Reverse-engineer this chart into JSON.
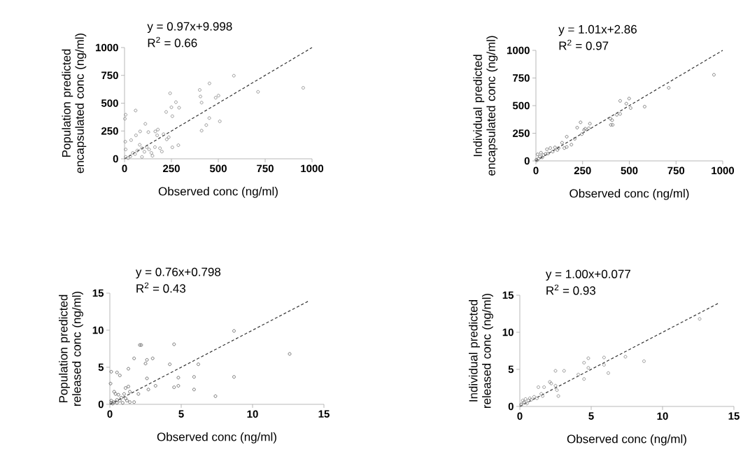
{
  "chart_data": [
    {
      "type": "scatter",
      "xlabel": "Observed conc (ng/ml)",
      "ylabel": "Population predicted encapsulated conc (ng/ml)",
      "annotations": [
        "y = 0.97x+9.998",
        "R$^{2}$ = 0.66"
      ],
      "xlim": [
        0,
        1000
      ],
      "ylim": [
        0,
        1000
      ],
      "xticks": [
        0,
        250,
        500,
        750,
        1000
      ],
      "yticks": [
        0,
        250,
        500,
        750,
        1000
      ],
      "series": [
        {
          "marker": "circle",
          "color": "#808080",
          "x": [
            583,
            953,
            712,
            453,
            401,
            405,
            411,
            486,
            501,
            508,
            452,
            436,
            411,
            243,
            274,
            250,
            291,
            255,
            222,
            59,
            6,
            2,
            111,
            83,
            127,
            164,
            178,
            61,
            208,
            236,
            225,
            255,
            287,
            199,
            189,
            149,
            143,
            35,
            4,
            6,
            81,
            93,
            56,
            31,
            19,
            118,
            131,
            106,
            68,
            44,
            93,
            6,
            162,
            174
          ],
          "values": [
            747,
            638,
            602,
            678,
            619,
            560,
            505,
            549,
            568,
            337,
            366,
            303,
            253,
            589,
            509,
            463,
            459,
            383,
            421,
            434,
            396,
            360,
            314,
            246,
            240,
            246,
            263,
            211,
            221,
            194,
            175,
            103,
            122,
            65,
            95,
            27,
            53,
            168,
            154,
            84,
            126,
            95,
            42,
            21,
            6,
            105,
            84,
            63,
            74,
            53,
            17,
            17,
            105,
            211
          ]
        },
        {
          "type": "line",
          "line_style": "dashed",
          "color": "#333333",
          "x": [
            0,
            1000
          ],
          "values": [
            0,
            1000
          ]
        }
      ]
    },
    {
      "type": "scatter",
      "xlabel": "Observed conc (ng/ml)",
      "ylabel": "Individual predicted encapsulated conc (ng/ml)",
      "annotations": [
        "y = 1.01x+2.86",
        "R$^{2}$ = 0.97"
      ],
      "xlim": [
        0,
        1000
      ],
      "ylim": [
        0,
        1000
      ],
      "xticks": [
        0,
        250,
        500,
        750,
        1000
      ],
      "yticks": [
        0,
        250,
        500,
        750,
        1000
      ],
      "series": [
        {
          "marker": "circle",
          "color": "#666666",
          "x": [
            953,
            711,
            582,
            451,
            499,
            484,
            507,
            451,
            433,
            398,
            408,
            401,
            411,
            239,
            221,
            289,
            283,
            258,
            246,
            208,
            165,
            190,
            165,
            140,
            121,
            102,
            59,
            77,
            27,
            9,
            21,
            40,
            52,
            90,
            115,
            2,
            15,
            34,
            65,
            5,
            152,
            264
          ],
          "values": [
            779,
            661,
            491,
            543,
            564,
            518,
            478,
            425,
            417,
            383,
            368,
            326,
            326,
            349,
            301,
            337,
            295,
            280,
            242,
            200,
            219,
            147,
            126,
            164,
            116,
            122,
            105,
            116,
            74,
            59,
            38,
            53,
            63,
            84,
            99,
            11,
            21,
            32,
            67,
            4,
            116,
            291
          ]
        },
        {
          "type": "line",
          "line_style": "dashed",
          "color": "#333333",
          "x": [
            0,
            1000
          ],
          "values": [
            0,
            1000
          ]
        }
      ]
    },
    {
      "type": "scatter",
      "xlabel": "Observed conc (ng/ml)",
      "ylabel": "Population predicted released conc (ng/ml)",
      "annotations": [
        "y = 0.76x+0.798",
        "R$^{2}$ = 0.43"
      ],
      "xlim": [
        0,
        15
      ],
      "ylim": [
        0,
        15
      ],
      "xticks": [
        0,
        5,
        10,
        15
      ],
      "yticks": [
        0,
        5,
        10,
        15
      ],
      "series": [
        {
          "marker": "circle",
          "color": "#555555",
          "x": [
            8.7,
            12.6,
            4.5,
            2.1,
            2.2,
            1.7,
            2.6,
            3.0,
            2.5,
            4.2,
            6.2,
            1.3,
            0.1,
            0.5,
            0.7,
            0.05,
            2.6,
            4.8,
            5.9,
            8.7,
            3.2,
            2.7,
            4.5,
            4.8,
            5.9,
            7.4,
            2.0,
            1.3,
            1.1,
            1.4,
            1.7,
            0.3,
            0.4,
            0.6,
            0.8,
            1.0,
            1.1,
            0.1,
            0.3,
            0.5,
            0.7,
            0.1,
            0.2,
            0.5,
            1.4,
            0.9,
            1.2
          ],
          "values": [
            9.9,
            6.8,
            8.1,
            8.0,
            8.0,
            6.2,
            6.0,
            6.2,
            5.5,
            5.4,
            5.4,
            4.8,
            4.4,
            4.3,
            3.9,
            2.8,
            3.5,
            3.6,
            3.7,
            3.7,
            2.5,
            2.0,
            2.3,
            2.5,
            2.0,
            1.1,
            1.4,
            2.4,
            2.2,
            1.7,
            0.3,
            1.7,
            1.4,
            1.3,
            0.9,
            1.4,
            0.8,
            0.5,
            0.3,
            0.6,
            0.5,
            0.2,
            0.1,
            0.2,
            0.3,
            0.2,
            0.5
          ]
        },
        {
          "type": "line",
          "line_style": "dashed",
          "color": "#333333",
          "x": [
            0,
            14
          ],
          "values": [
            0,
            14
          ]
        }
      ]
    },
    {
      "type": "scatter",
      "xlabel": "Observed conc (ng/ml)",
      "ylabel": "Individual predicted released conc (ng/ml)",
      "annotations": [
        "y = 1.00x+0.077",
        "R$^{2}$ = 0.93"
      ],
      "xlim": [
        0,
        15
      ],
      "ylim": [
        0,
        15
      ],
      "xticks": [
        0,
        5,
        10,
        15
      ],
      "yticks": [
        0,
        5,
        10,
        15
      ],
      "series": [
        {
          "marker": "circle",
          "color": "#808080",
          "x": [
            12.6,
            8.7,
            7.4,
            5.9,
            5.9,
            6.2,
            4.8,
            4.5,
            4.8,
            4.1,
            4.5,
            2.5,
            3.1,
            2.1,
            2.2,
            2.5,
            2.6,
            2.7,
            1.3,
            1.7,
            1.5,
            1.2,
            1.0,
            0.7,
            0.4,
            0.2,
            0.3,
            0.6,
            0.8,
            0.1,
            0.3,
            0.5,
            0.1,
            1.6
          ],
          "values": [
            11.8,
            6.1,
            6.7,
            6.6,
            5.6,
            4.5,
            6.5,
            5.9,
            5.2,
            4.3,
            3.7,
            4.8,
            4.8,
            3.3,
            3.1,
            2.8,
            2.2,
            1.4,
            2.6,
            2.6,
            1.7,
            1.1,
            1.3,
            1.1,
            1.0,
            0.8,
            0.6,
            0.8,
            0.9,
            0.3,
            0.5,
            0.4,
            0.2,
            1.4
          ]
        },
        {
          "type": "line",
          "line_style": "dashed",
          "color": "#333333",
          "x": [
            0,
            14
          ],
          "values": [
            0,
            14
          ]
        }
      ]
    }
  ]
}
